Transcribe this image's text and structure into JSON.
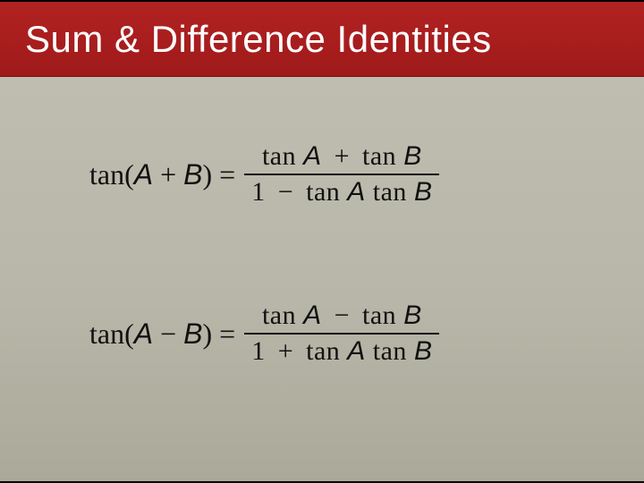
{
  "slide": {
    "title": "Sum & Difference Identities",
    "header_bg": "#a81e1e",
    "header_text_color": "#ffffff",
    "body_bg_top": "#c0bfb2",
    "body_bg_bottom": "#aaa99a",
    "text_color": "#111111",
    "title_fontsize": 42
  },
  "equations": {
    "eq1": {
      "lhs_fn": "tan(",
      "lhs_varA": "A",
      "lhs_op": " + ",
      "lhs_varB": "B",
      "lhs_close": ")",
      "num_t1": "tan ",
      "num_v1": "A",
      "num_op": " + ",
      "num_t2": "tan ",
      "num_v2": "B",
      "den_lead": "1",
      "den_op": " − ",
      "den_t1": "tan ",
      "den_v1": "A",
      "den_t2": " tan ",
      "den_v2": "B"
    },
    "eq2": {
      "lhs_fn": "tan(",
      "lhs_varA": "A",
      "lhs_op": " − ",
      "lhs_varB": "B",
      "lhs_close": ")",
      "num_t1": "tan ",
      "num_v1": "A",
      "num_op": " − ",
      "num_t2": "tan ",
      "num_v2": "B",
      "den_lead": "1",
      "den_op": " + ",
      "den_t1": "tan ",
      "den_v1": "A",
      "den_t2": " tan ",
      "den_v2": "B"
    }
  }
}
